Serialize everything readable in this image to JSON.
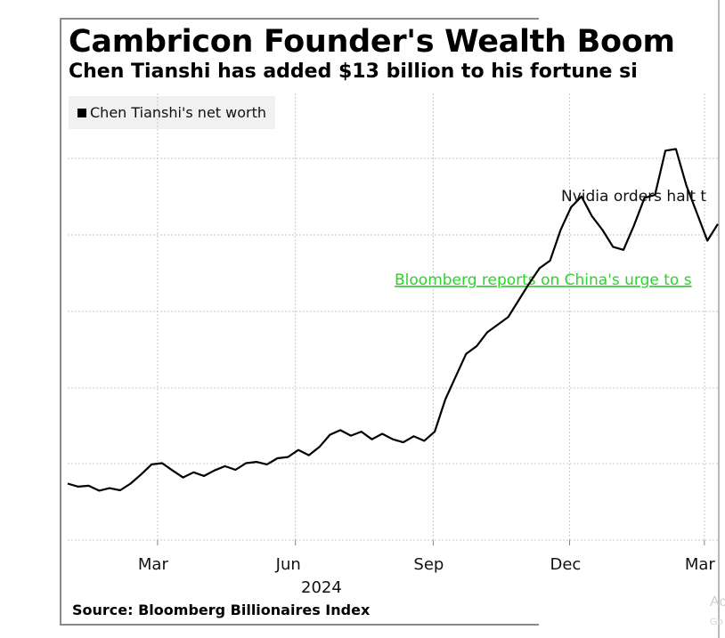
{
  "title": "Cambricon Founder's Wealth Boom",
  "subtitle": "Chen Tianshi has added $13 billion to his fortune si",
  "legend": {
    "label": "Chen Tianshi's net worth"
  },
  "source": "Source: Bloomberg Billionaires Index",
  "watermark": "Ac",
  "watermark2": "Go",
  "colors": {
    "line": "#000000",
    "grid": "#c8c8c8",
    "annotation_green": "#2bd42b",
    "annotation_black": "#111111"
  },
  "chart_data": {
    "type": "line",
    "title": "Cambricon Founder's Wealth Boom",
    "subtitle": "Chen Tianshi has added $13 billion to his fortune si",
    "xlabel": "",
    "ylabel": "",
    "x_ticks": [
      "Mar",
      "Jun",
      "Sep",
      "Dec",
      "Mar"
    ],
    "x_year_label": "2024",
    "y_ticks_visible": false,
    "grid": true,
    "legend_position": "top-left",
    "annotations": [
      {
        "text": "Nvidia orders halt t",
        "style": "black"
      },
      {
        "text": "Bloomberg reports on China's urge to s",
        "style": "green-underlined"
      }
    ],
    "series": [
      {
        "name": "Chen Tianshi's net worth",
        "x": [
          "2024-01-01",
          "2024-01-08",
          "2024-01-15",
          "2024-01-22",
          "2024-01-29",
          "2024-02-05",
          "2024-02-12",
          "2024-02-19",
          "2024-02-26",
          "2024-03-04",
          "2024-03-11",
          "2024-03-18",
          "2024-03-25",
          "2024-04-01",
          "2024-04-08",
          "2024-04-15",
          "2024-04-22",
          "2024-04-29",
          "2024-05-06",
          "2024-05-13",
          "2024-05-20",
          "2024-05-27",
          "2024-06-03",
          "2024-06-10",
          "2024-06-17",
          "2024-06-24",
          "2024-07-01",
          "2024-07-08",
          "2024-07-15",
          "2024-07-22",
          "2024-07-29",
          "2024-08-05",
          "2024-08-12",
          "2024-08-19",
          "2024-08-26",
          "2024-09-02",
          "2024-09-09",
          "2024-09-16",
          "2024-09-23",
          "2024-09-30",
          "2024-10-07",
          "2024-10-14",
          "2024-10-21",
          "2024-10-28",
          "2024-11-04",
          "2024-11-11",
          "2024-11-18",
          "2024-11-25",
          "2024-12-02",
          "2024-12-09",
          "2024-12-16",
          "2024-12-23",
          "2024-12-30",
          "2025-01-06",
          "2025-01-13",
          "2025-01-20",
          "2025-01-27",
          "2025-02-03",
          "2025-02-10",
          "2025-02-17",
          "2025-02-24",
          "2025-03-03",
          "2025-03-10"
        ],
        "values": [
          1.85,
          1.75,
          1.78,
          1.62,
          1.7,
          1.63,
          1.85,
          2.15,
          2.48,
          2.52,
          2.28,
          2.05,
          2.22,
          2.1,
          2.28,
          2.42,
          2.3,
          2.52,
          2.56,
          2.48,
          2.68,
          2.72,
          2.95,
          2.78,
          3.05,
          3.45,
          3.6,
          3.42,
          3.55,
          3.3,
          3.48,
          3.3,
          3.2,
          3.4,
          3.25,
          3.55,
          4.6,
          5.35,
          6.1,
          6.35,
          6.8,
          7.05,
          7.3,
          7.85,
          8.4,
          8.9,
          9.15,
          10.15,
          10.9,
          11.25,
          10.6,
          10.15,
          9.6,
          9.5,
          10.3,
          11.2,
          11.3,
          12.75,
          12.8,
          11.6,
          10.7,
          9.8,
          10.35
        ]
      }
    ]
  }
}
